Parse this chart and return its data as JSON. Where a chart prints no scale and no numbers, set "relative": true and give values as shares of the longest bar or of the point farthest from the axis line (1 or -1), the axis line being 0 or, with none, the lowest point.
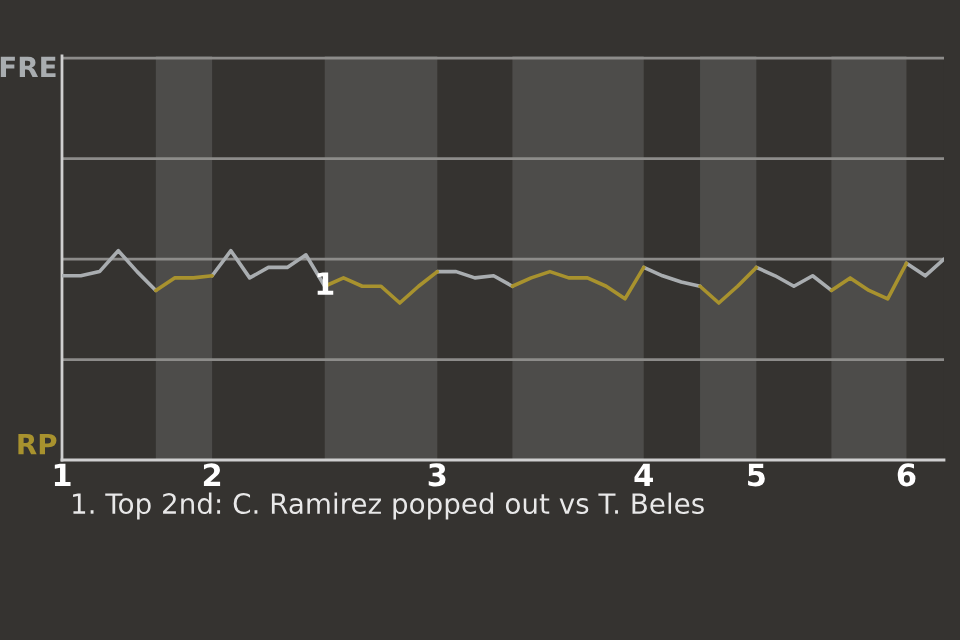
{
  "chart_data": {
    "type": "line",
    "relative": true,
    "ref_lines": [
      {
        "axis": "y",
        "value": 0.48,
        "color": "#8d8c8a"
      },
      {
        "axis": "y",
        "value": 0.96,
        "color": "#8d8c8a"
      },
      {
        "axis": "y",
        "value": 1.44,
        "color": "#8d8c8a"
      },
      {
        "axis": "y",
        "value": 1.92,
        "color": "#8d8c8a"
      }
    ],
    "categories": [
      "1",
      null,
      null,
      null,
      null,
      null,
      null,
      null,
      "2",
      null,
      null,
      null,
      null,
      null,
      null,
      null,
      null,
      null,
      null,
      null,
      "3",
      null,
      null,
      null,
      null,
      null,
      null,
      null,
      null,
      null,
      null,
      "4",
      null,
      null,
      null,
      null,
      null,
      "5",
      null,
      null,
      null,
      null,
      null,
      null,
      null,
      "6",
      null,
      null
    ],
    "series": [
      {
        "name": "FRE",
        "color": "#a9adb0",
        "values": [
          0.88,
          0.88,
          0.9,
          1,
          0.9,
          0.81,
          null,
          null,
          0.88,
          1,
          0.87,
          0.92,
          0.92,
          0.98,
          0.83,
          null,
          null,
          null,
          null,
          null,
          0.9,
          0.9,
          0.87,
          0.88,
          0.83,
          null,
          null,
          null,
          null,
          null,
          null,
          0.92,
          0.88,
          0.85,
          0.83,
          null,
          null,
          0.92,
          0.88,
          0.83,
          0.88,
          0.81,
          null,
          null,
          null,
          0.94,
          0.88,
          0.96
        ]
      },
      {
        "name": "RP",
        "color": "#a8922e",
        "values": [
          null,
          null,
          null,
          null,
          null,
          0.81,
          0.87,
          0.87,
          0.88,
          null,
          null,
          null,
          null,
          null,
          0.83,
          0.87,
          0.83,
          0.83,
          0.75,
          0.83,
          0.9,
          null,
          null,
          null,
          0.83,
          0.87,
          0.9,
          0.87,
          0.87,
          0.83,
          0.77,
          0.92,
          null,
          null,
          0.83,
          0.75,
          0.83,
          0.92,
          null,
          null,
          null,
          0.81,
          0.87,
          0.81,
          0.77,
          0.94,
          null,
          null
        ]
      }
    ],
    "annotations": [
      {
        "text": "1",
        "y": 0.83
      },
      "1. Top 2nd: C. Ramirez popped out vs T. Beles"
    ]
  }
}
